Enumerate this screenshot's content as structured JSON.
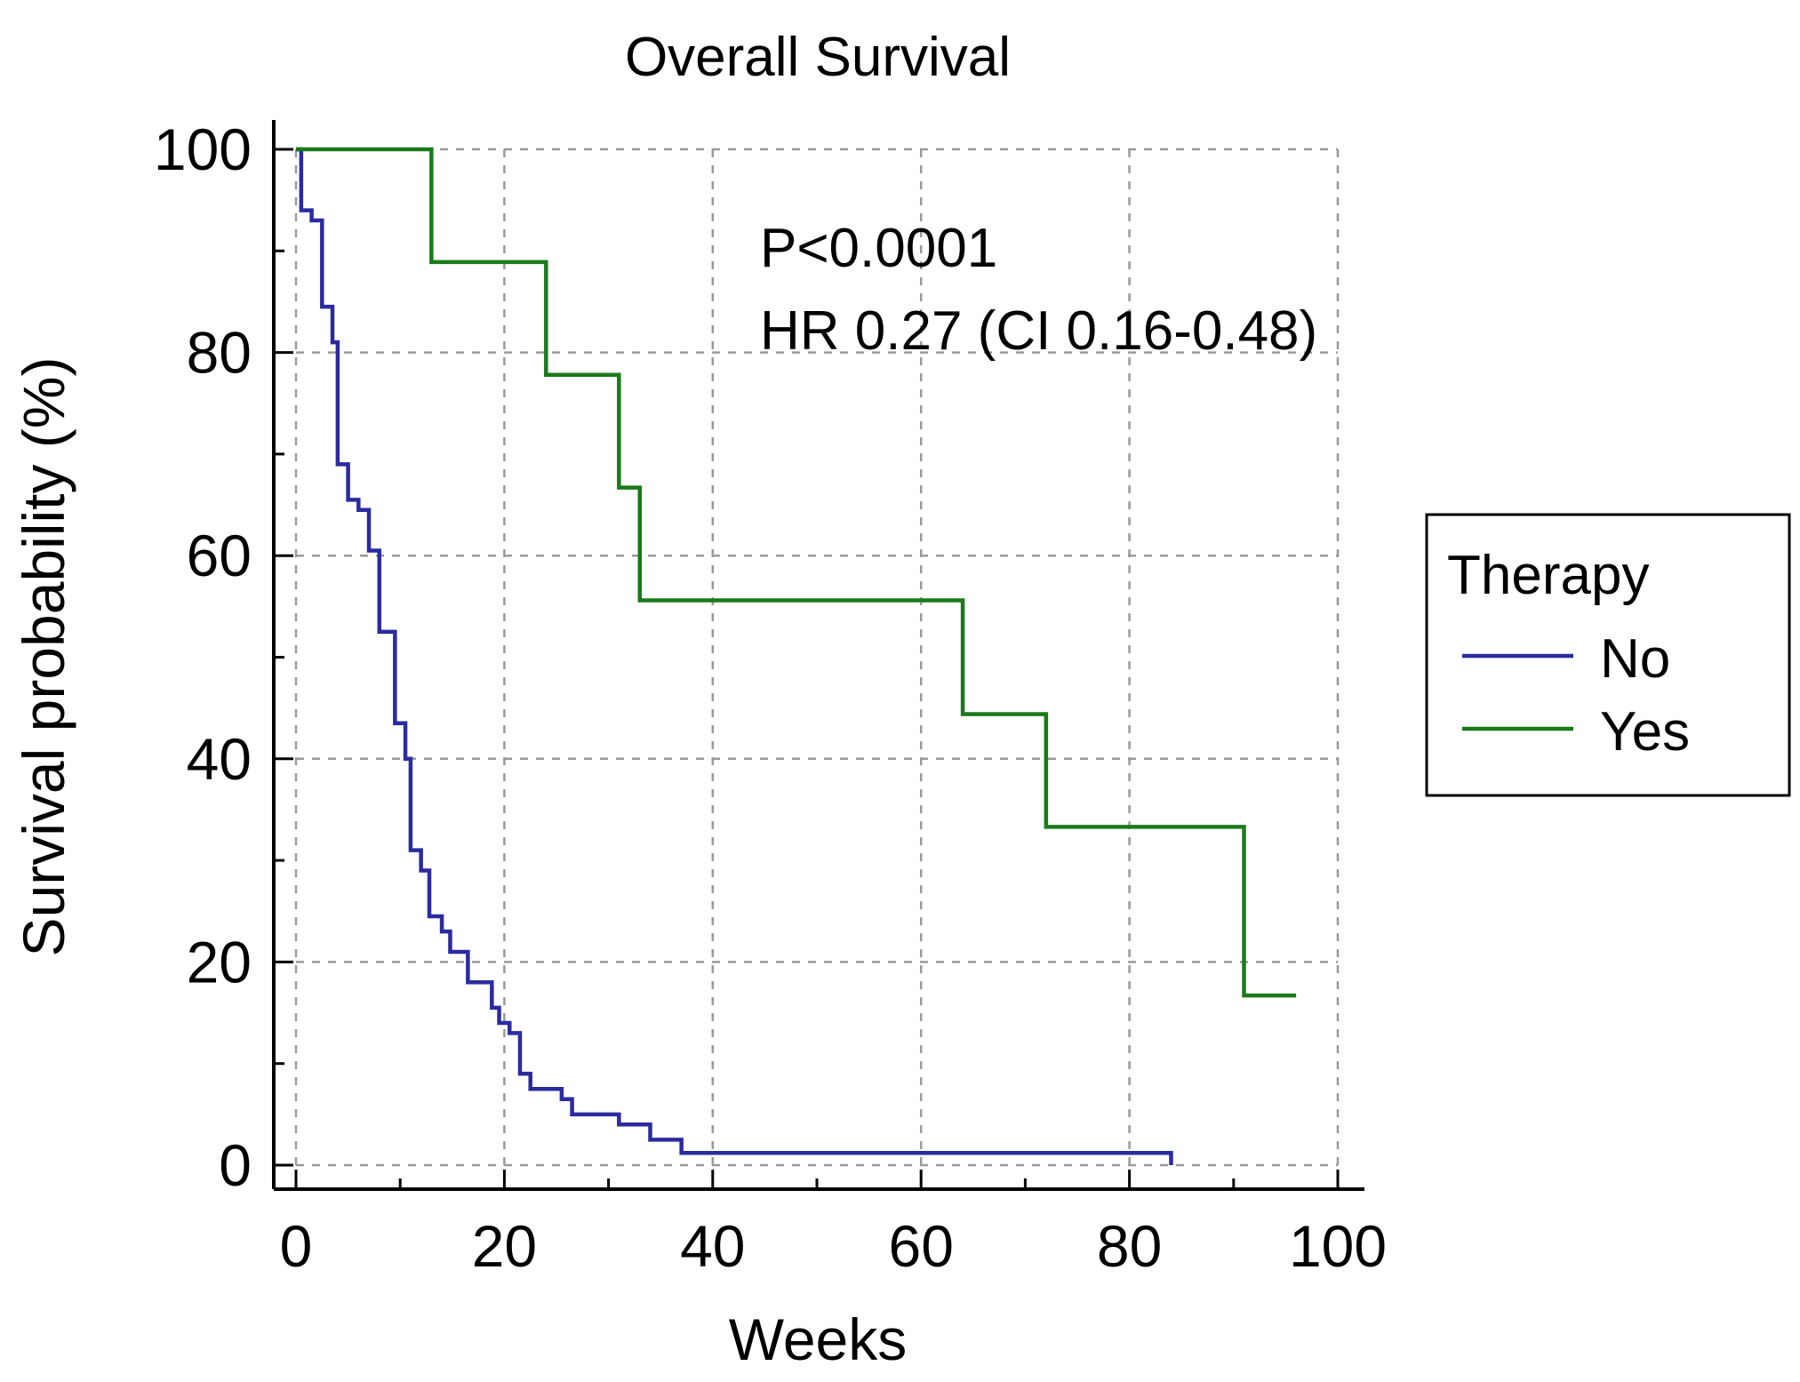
{
  "chart_data": {
    "type": "line",
    "subtype": "kaplan-meier-step",
    "title": "Overall Survival",
    "xlabel": "Weeks",
    "ylabel": "Survival probability (%)",
    "xlim": [
      0,
      100
    ],
    "ylim": [
      0,
      100
    ],
    "xticks": [
      0,
      20,
      40,
      60,
      80,
      100
    ],
    "yticks": [
      0,
      20,
      40,
      60,
      80,
      100
    ],
    "xtick_labels": [
      "0",
      "20",
      "40",
      "60",
      "80",
      "100"
    ],
    "ytick_labels": [
      "0",
      "20",
      "40",
      "60",
      "80",
      "100"
    ],
    "grid": true,
    "annotations": [
      "P<0.0001",
      "HR 0.27 (CI 0.16-0.48)"
    ],
    "legend": {
      "title": "Therapy",
      "placement": "right",
      "entries": [
        "No",
        "Yes"
      ]
    },
    "series": [
      {
        "name": "No",
        "color": "#2b2ba0",
        "steps": [
          [
            0,
            100
          ],
          [
            0.5,
            94
          ],
          [
            1.5,
            93
          ],
          [
            2.5,
            84.5
          ],
          [
            3.5,
            81
          ],
          [
            4,
            69
          ],
          [
            5,
            65.5
          ],
          [
            6,
            64.5
          ],
          [
            7,
            60.5
          ],
          [
            8,
            52.5
          ],
          [
            9.5,
            43.5
          ],
          [
            10.5,
            40
          ],
          [
            11,
            31
          ],
          [
            12,
            29
          ],
          [
            12.8,
            24.5
          ],
          [
            14,
            23
          ],
          [
            14.8,
            21
          ],
          [
            16.5,
            18
          ],
          [
            18.8,
            15.5
          ],
          [
            19.5,
            14
          ],
          [
            20.5,
            13
          ],
          [
            21.5,
            9
          ],
          [
            22.5,
            7.5
          ],
          [
            25.5,
            6.5
          ],
          [
            26.5,
            5
          ],
          [
            31,
            4
          ],
          [
            34,
            2.5
          ],
          [
            37,
            1.2
          ],
          [
            84,
            0
          ]
        ],
        "end_x": 84
      },
      {
        "name": "Yes",
        "color": "#1a7a1a",
        "steps": [
          [
            0,
            100
          ],
          [
            13,
            88.9
          ],
          [
            24,
            77.8
          ],
          [
            31,
            66.7
          ],
          [
            33,
            55.6
          ],
          [
            64,
            44.4
          ],
          [
            72,
            33.3
          ],
          [
            91,
            16.7
          ]
        ],
        "end_x": 96
      }
    ]
  }
}
